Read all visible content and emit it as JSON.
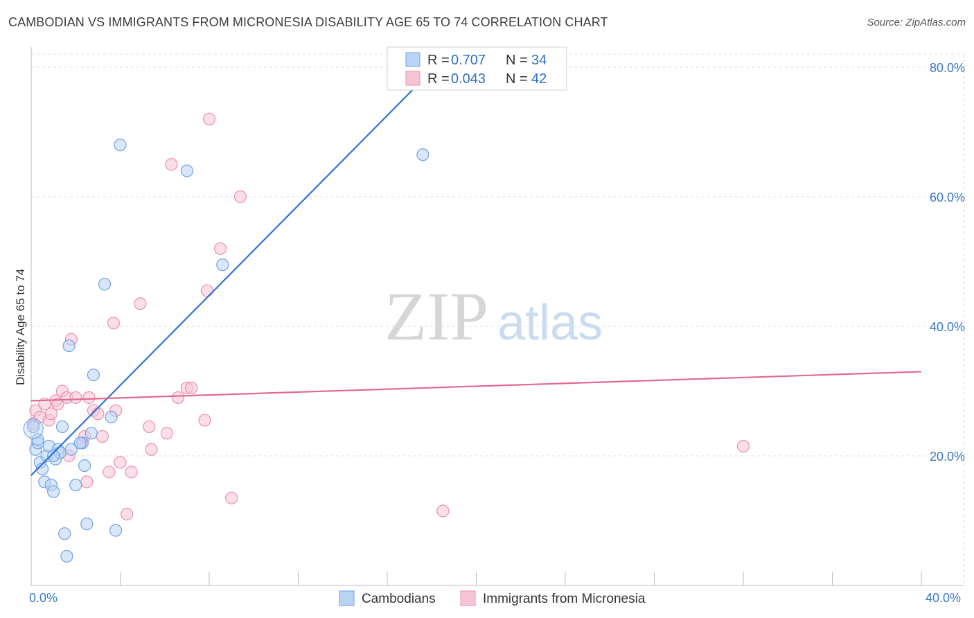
{
  "title": "CAMBODIAN VS IMMIGRANTS FROM MICRONESIA DISABILITY AGE 65 TO 74 CORRELATION CHART",
  "source": "Source: ZipAtlas.com",
  "watermark": {
    "zip": "ZIP",
    "atlas": "atlas"
  },
  "colors": {
    "blue": "#6fa2e6",
    "blue_fill": "#b9d3f4",
    "blue_line": "#2e74d4",
    "pink": "#ec8fae",
    "pink_fill": "#f6c5d5",
    "pink_line": "#e2698f",
    "grid": "#dcdcdc",
    "axis_text": "#3b78c8"
  },
  "legend": {
    "rows": [
      {
        "r_label": "R = ",
        "r_value": "0.707",
        "n_label": "N = ",
        "n_value": "34"
      },
      {
        "r_label": "R = ",
        "r_value": "0.043",
        "n_label": "N = ",
        "n_value": "42"
      }
    ]
  },
  "chart_data": {
    "type": "scatter",
    "title": "CAMBODIAN VS IMMIGRANTS FROM MICRONESIA DISABILITY AGE 65 TO 74 CORRELATION CHART",
    "xlabel": "",
    "ylabel": "Disability Age 65 to 74",
    "xlim": [
      0,
      40
    ],
    "ylim": [
      0,
      80
    ],
    "x_tick_labels": [
      "0.0%",
      "40.0%"
    ],
    "y_ticks": [
      20,
      40,
      60,
      80
    ],
    "y_tick_labels": [
      "20.0%",
      "40.0%",
      "60.0%",
      "80.0%"
    ],
    "series": [
      {
        "name": "Cambodians",
        "points": [
          [
            0.1,
            24.5
          ],
          [
            0.2,
            21.0
          ],
          [
            0.3,
            22.0
          ],
          [
            0.4,
            19.0
          ],
          [
            0.5,
            18.0
          ],
          [
            0.6,
            16.0
          ],
          [
            0.7,
            20.0
          ],
          [
            0.8,
            21.5
          ],
          [
            0.9,
            15.5
          ],
          [
            1.0,
            14.5
          ],
          [
            1.1,
            19.5
          ],
          [
            1.2,
            21.0
          ],
          [
            1.3,
            20.5
          ],
          [
            1.4,
            24.5
          ],
          [
            1.5,
            8.0
          ],
          [
            1.6,
            4.5
          ],
          [
            1.7,
            37.0
          ],
          [
            1.8,
            21.0
          ],
          [
            2.0,
            15.5
          ],
          [
            2.3,
            22.0
          ],
          [
            2.4,
            18.5
          ],
          [
            2.5,
            9.5
          ],
          [
            2.7,
            23.5
          ],
          [
            2.8,
            32.5
          ],
          [
            3.3,
            46.5
          ],
          [
            3.6,
            26.0
          ],
          [
            3.8,
            8.5
          ],
          [
            4.0,
            68.0
          ],
          [
            7.0,
            64.0
          ],
          [
            8.6,
            49.5
          ],
          [
            17.6,
            66.5
          ],
          [
            0.3,
            22.5
          ],
          [
            2.2,
            22.0
          ],
          [
            1.0,
            20.0
          ]
        ]
      },
      {
        "name": "Immigrants from Micronesia",
        "points": [
          [
            0.1,
            25.0
          ],
          [
            0.2,
            27.0
          ],
          [
            0.4,
            26.0
          ],
          [
            0.6,
            28.0
          ],
          [
            0.8,
            25.5
          ],
          [
            0.9,
            26.5
          ],
          [
            1.1,
            28.5
          ],
          [
            1.2,
            28.0
          ],
          [
            1.4,
            30.0
          ],
          [
            1.6,
            29.0
          ],
          [
            1.7,
            20.0
          ],
          [
            1.8,
            38.0
          ],
          [
            2.0,
            29.0
          ],
          [
            2.3,
            22.0
          ],
          [
            2.4,
            23.0
          ],
          [
            2.5,
            16.0
          ],
          [
            2.6,
            29.0
          ],
          [
            2.8,
            27.0
          ],
          [
            3.0,
            26.5
          ],
          [
            3.2,
            23.0
          ],
          [
            3.5,
            17.5
          ],
          [
            3.7,
            40.5
          ],
          [
            3.8,
            27.0
          ],
          [
            4.0,
            19.0
          ],
          [
            4.3,
            11.0
          ],
          [
            4.5,
            17.5
          ],
          [
            4.9,
            43.5
          ],
          [
            5.3,
            24.5
          ],
          [
            5.4,
            21.0
          ],
          [
            6.1,
            23.5
          ],
          [
            6.3,
            65.0
          ],
          [
            6.6,
            29.0
          ],
          [
            7.0,
            30.5
          ],
          [
            7.2,
            30.5
          ],
          [
            7.8,
            25.5
          ],
          [
            7.9,
            45.5
          ],
          [
            8.0,
            72.0
          ],
          [
            8.5,
            52.0
          ],
          [
            9.0,
            13.5
          ],
          [
            9.4,
            60.0
          ],
          [
            18.5,
            11.5
          ],
          [
            32.0,
            21.5
          ]
        ]
      }
    ],
    "trendlines": [
      {
        "series": "Cambodians",
        "x": [
          0,
          18
        ],
        "y": [
          17.0,
          79.5
        ]
      },
      {
        "series": "Immigrants from Micronesia",
        "x": [
          0,
          40
        ],
        "y": [
          28.5,
          33.0
        ]
      }
    ],
    "legend_position": "top-center"
  },
  "bottom_legend": [
    "Cambodians",
    "Immigrants from Micronesia"
  ]
}
